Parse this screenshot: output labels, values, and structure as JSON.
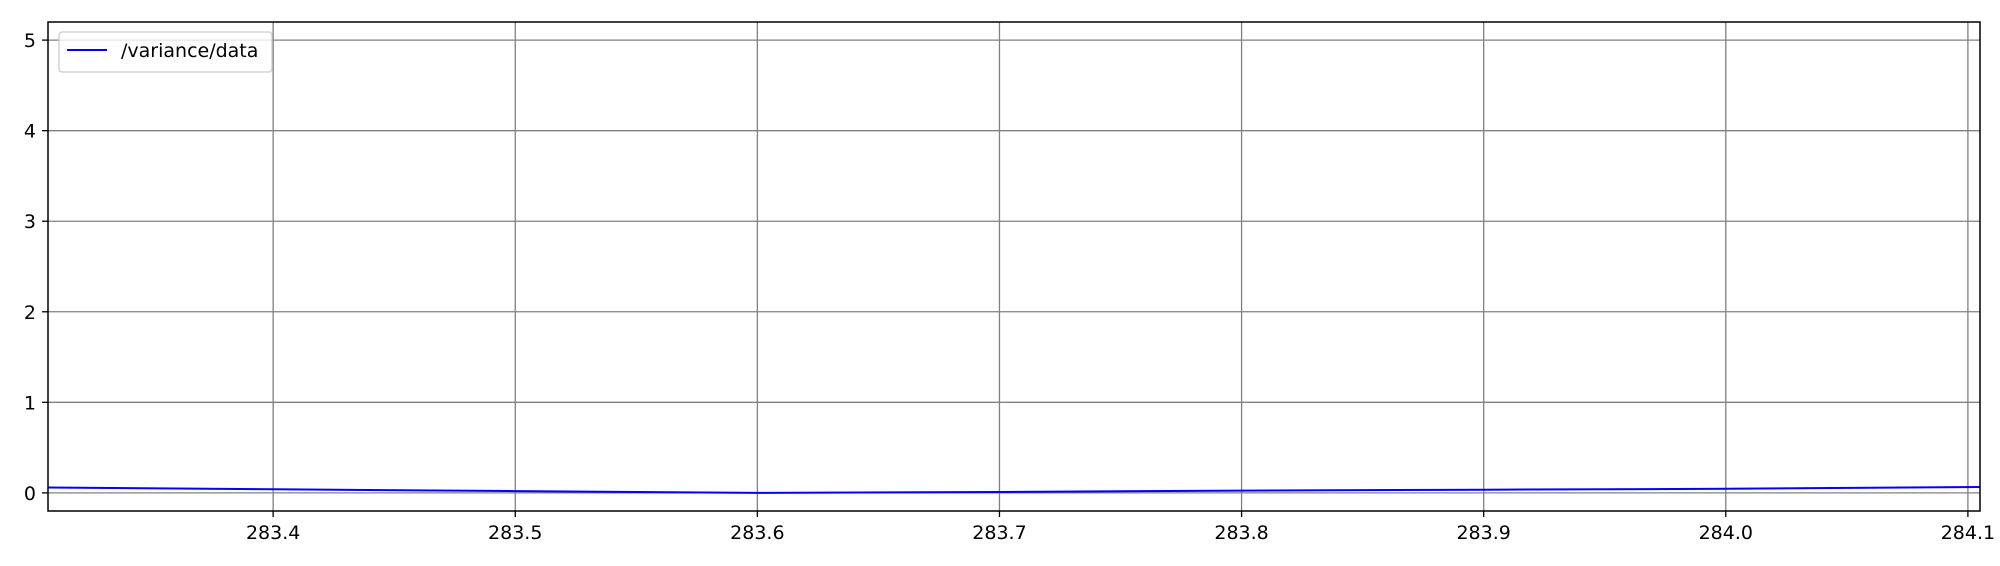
{
  "chart_data": {
    "type": "line",
    "title": "",
    "xlabel": "",
    "ylabel": "",
    "xlim": [
      283.307,
      284.105
    ],
    "ylim": [
      -0.2,
      5.2
    ],
    "x_ticks": [
      283.4,
      283.5,
      283.6,
      283.7,
      283.8,
      283.9,
      284.0,
      284.1
    ],
    "x_tick_labels": [
      "283.4",
      "283.5",
      "283.6",
      "283.7",
      "283.8",
      "283.9",
      "284.0",
      "284.1"
    ],
    "y_ticks": [
      0,
      1,
      2,
      3,
      4,
      5
    ],
    "y_tick_labels": [
      "0",
      "1",
      "2",
      "3",
      "4",
      "5"
    ],
    "grid": true,
    "legend_position": "top-left",
    "series": [
      {
        "name": "/variance/data",
        "color": "#0000ff",
        "x": [
          283.307,
          283.4,
          283.5,
          283.6,
          283.7,
          283.8,
          283.9,
          284.0,
          284.105
        ],
        "y": [
          0.06,
          0.04,
          0.02,
          0.0,
          0.01,
          0.025,
          0.035,
          0.045,
          0.065
        ]
      }
    ]
  }
}
